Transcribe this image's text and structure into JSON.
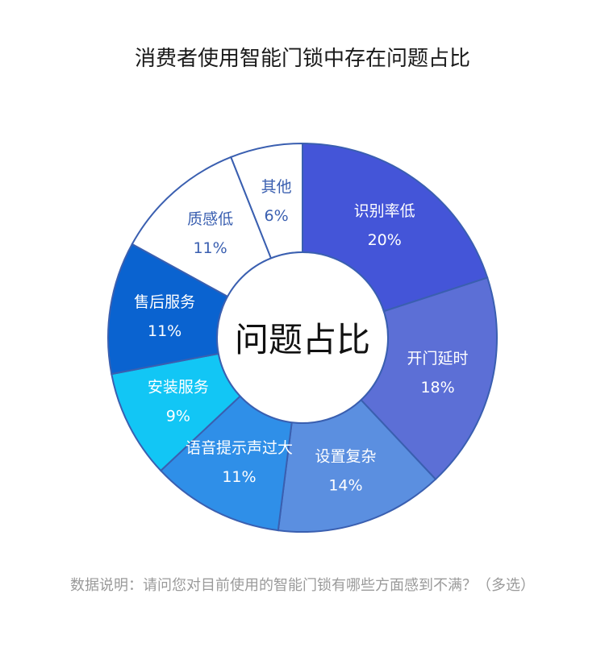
{
  "chart_data": {
    "type": "pie",
    "title": "消费者使用智能门锁中存在问题占比",
    "center_label": "问题占比",
    "note": "数据说明：请问您对目前使用的智能门锁有哪些方面感到不满？（多选）",
    "categories": [
      "识别率低",
      "开门延时",
      "设置复杂",
      "语音提示声过大",
      "安装服务",
      "售后服务",
      "质感低",
      "其他"
    ],
    "values": [
      20,
      18,
      14,
      11,
      9,
      11,
      11,
      6
    ],
    "value_labels": [
      "20%",
      "18%",
      "14%",
      "11%",
      "9%",
      "11%",
      "11%",
      "6%"
    ],
    "colors": [
      "#4455d8",
      "#5c6fd6",
      "#5b8fe0",
      "#2f8fe8",
      "#12c6f5",
      "#0a63d0",
      "#ffffff",
      "#ffffff"
    ],
    "text_colors": [
      "#ffffff",
      "#ffffff",
      "#ffffff",
      "#ffffff",
      "#ffffff",
      "#ffffff",
      "#3a5fb0",
      "#3a5fb0"
    ]
  }
}
